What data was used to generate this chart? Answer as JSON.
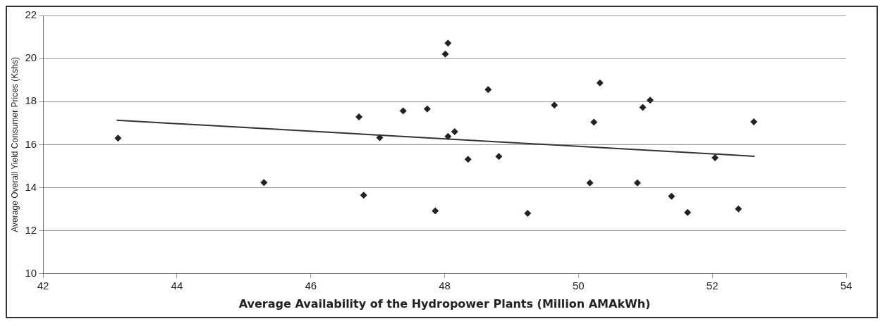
{
  "chart_data": {
    "type": "scatter",
    "xlabel": "Average Availability of the Hydropower Plants (Million AMAkWh)",
    "ylabel": "Average Overall Yield Consumer Prices (Kshs)",
    "xlim": [
      42,
      54
    ],
    "xticks": [
      42,
      44,
      46,
      48,
      50,
      52,
      54
    ],
    "ylim": [
      10,
      22
    ],
    "yticks": [
      10,
      12,
      14,
      16,
      18,
      20,
      22
    ],
    "grid": "y",
    "legend": false,
    "marker": "diamond",
    "series": [
      {
        "type": "scatter",
        "color": "#222222",
        "x": [
          43.12,
          45.3,
          46.72,
          46.79,
          47.03,
          47.38,
          47.74,
          48.01,
          48.05,
          48.65,
          48.15,
          48.05,
          48.35,
          48.81,
          47.86,
          49.24,
          49.64,
          50.32,
          50.23,
          50.17,
          50.96,
          51.07,
          50.88,
          51.39,
          51.63,
          52.04,
          52.39,
          52.62
        ],
        "values": [
          16.3,
          14.24,
          17.29,
          13.65,
          16.32,
          17.57,
          17.66,
          20.21,
          20.72,
          18.56,
          16.6,
          16.38,
          15.32,
          15.45,
          12.92,
          12.81,
          17.84,
          18.87,
          17.04,
          14.22,
          17.73,
          18.07,
          14.22,
          13.6,
          12.85,
          15.39,
          13.01,
          17.06
        ]
      },
      {
        "type": "line",
        "color": "#333333",
        "marker": "none",
        "line_style": "solid",
        "x": [
          43.1,
          52.63
        ],
        "values": [
          17.13,
          15.46
        ]
      }
    ]
  }
}
